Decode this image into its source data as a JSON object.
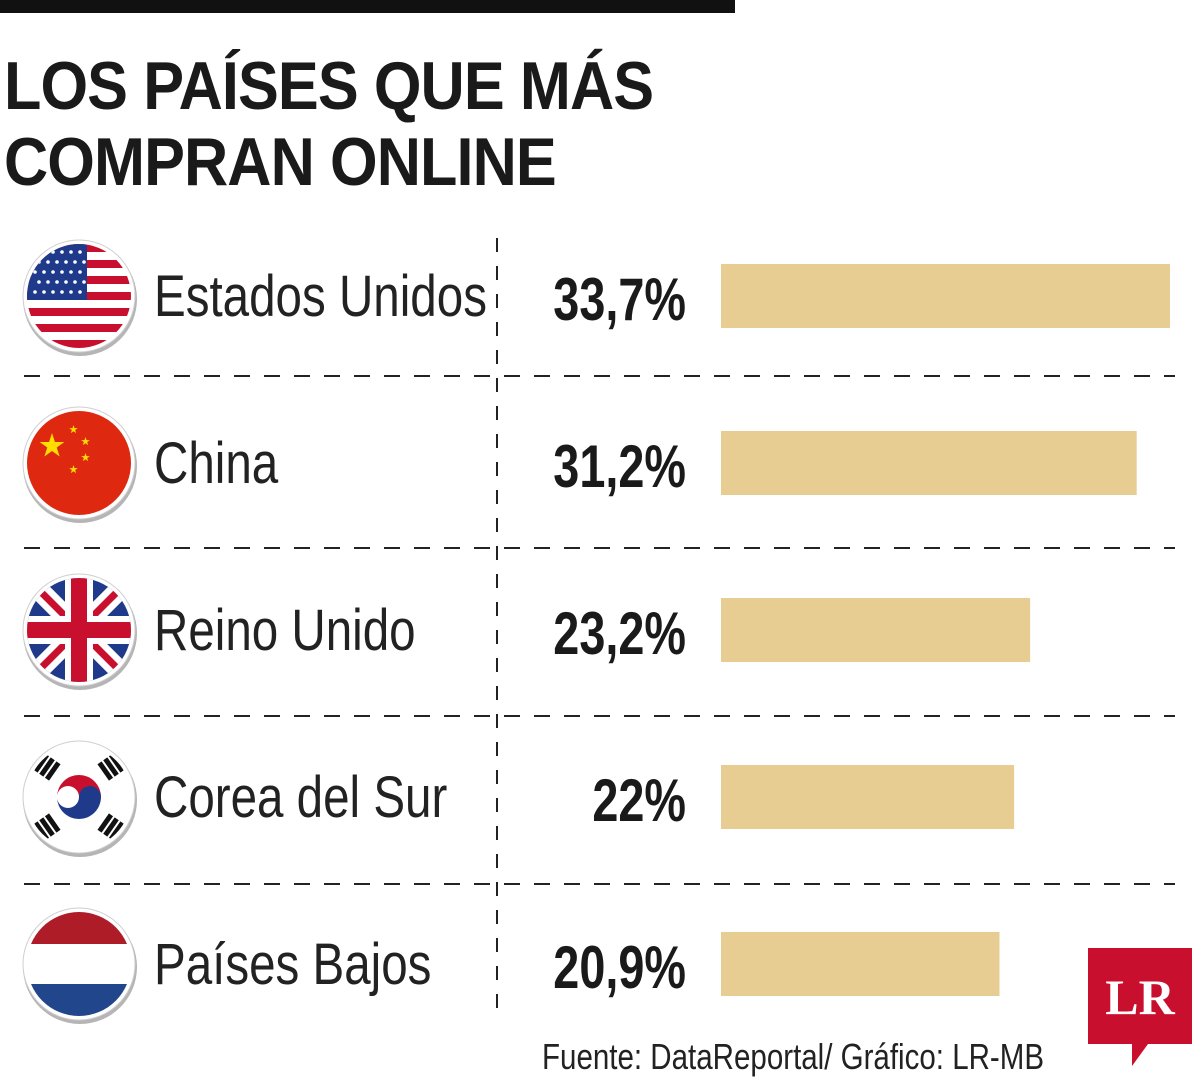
{
  "title_lines": [
    "LOS PAÍSES QUE MÁS",
    "COMPRAN ONLINE"
  ],
  "source_note": "Fuente: DataReportal/ Gráfico: LR-MB",
  "logo_text": "LR",
  "colors": {
    "bar": "#e8cd92",
    "rule": "#111111",
    "logo": "#c8102e"
  },
  "flag_icons": [
    "us-flag-icon",
    "china-flag-icon",
    "uk-flag-icon",
    "south-korea-flag-icon",
    "netherlands-flag-icon"
  ],
  "chart_data": {
    "type": "bar",
    "orientation": "horizontal",
    "categories": [
      "Estados Unidos",
      "China",
      "Reino Unido",
      "Corea del Sur",
      "Países Bajos"
    ],
    "values": [
      33.7,
      31.2,
      23.2,
      22,
      20.9
    ],
    "value_labels": [
      "33,7%",
      "31,2%",
      "23,2%",
      "22%",
      "20,9%"
    ],
    "unit": "%",
    "title": "LOS PAÍSES QUE MÁS COMPRAN ONLINE",
    "xlabel": "",
    "ylabel": "",
    "grid": false
  }
}
